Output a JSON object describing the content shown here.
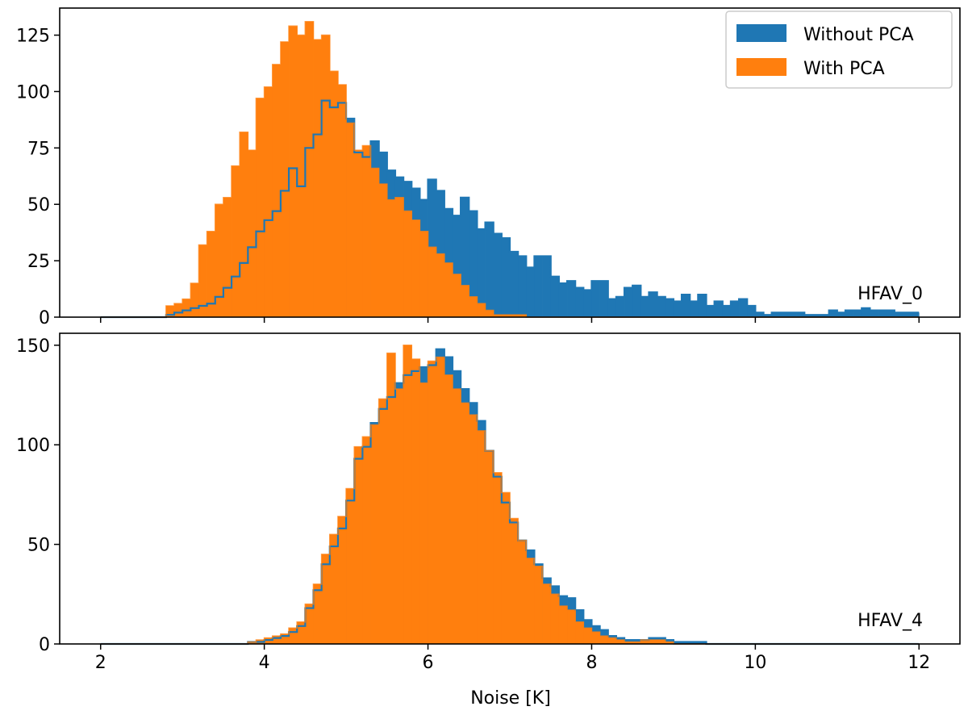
{
  "figure": {
    "xlabel": "Noise [K]",
    "x_tick_labels": [
      "2",
      "4",
      "6",
      "8",
      "10",
      "12"
    ],
    "colors": {
      "without_pca": "#1f77b4",
      "with_pca": "#ff7f0e"
    },
    "legend": {
      "without_pca": "Without PCA",
      "with_pca": "With PCA"
    }
  },
  "chart_data": [
    {
      "type": "bar",
      "panel": "top",
      "annotation": "HFAV_0",
      "xlim": [
        1.5,
        12.5
      ],
      "ylim": [
        0,
        137
      ],
      "bin_start": 2.0,
      "bin_width": 0.1,
      "yticks": [
        0,
        25,
        50,
        75,
        100,
        125
      ],
      "legend_position": "top-right",
      "series": [
        {
          "name": "Without PCA",
          "values": [
            0,
            0,
            0,
            0,
            0,
            0,
            0,
            0,
            1,
            2,
            3,
            4,
            5,
            6,
            9,
            13,
            18,
            24,
            31,
            38,
            43,
            47,
            56,
            66,
            58,
            75,
            81,
            96,
            93,
            95,
            88,
            73,
            71,
            78,
            73,
            65,
            62,
            60,
            57,
            52,
            61,
            56,
            48,
            45,
            53,
            47,
            39,
            42,
            37,
            35,
            29,
            27,
            22,
            27,
            27,
            18,
            15,
            16,
            13,
            12,
            16,
            16,
            8,
            9,
            13,
            14,
            9,
            11,
            9,
            8,
            7,
            10,
            7,
            10,
            5,
            7,
            5,
            7,
            8,
            5,
            2,
            1,
            2,
            2,
            2,
            2,
            1,
            1,
            1,
            3,
            2,
            3,
            3,
            4,
            3,
            3,
            3,
            2,
            2,
            2
          ]
        },
        {
          "name": "With PCA",
          "values": [
            0,
            0,
            0,
            0,
            0,
            0,
            0,
            0,
            5,
            6,
            8,
            15,
            32,
            38,
            50,
            53,
            67,
            82,
            74,
            97,
            102,
            112,
            122,
            129,
            125,
            131,
            123,
            125,
            109,
            103,
            86,
            74,
            76,
            66,
            59,
            52,
            53,
            47,
            43,
            38,
            31,
            28,
            24,
            19,
            14,
            9,
            6,
            3,
            1,
            1,
            1,
            1,
            0,
            0,
            0,
            0,
            0,
            0,
            0,
            0,
            0,
            0,
            0,
            0,
            0,
            0,
            0,
            0,
            0,
            0,
            0,
            0,
            0,
            0,
            0,
            0,
            0,
            0,
            0,
            0,
            0,
            0,
            0,
            0,
            0,
            0,
            0,
            0,
            0,
            0,
            0,
            0,
            0,
            0,
            0,
            0,
            0,
            0,
            0,
            0
          ]
        }
      ]
    },
    {
      "type": "bar",
      "panel": "bottom",
      "annotation": "HFAV_4",
      "xlim": [
        1.5,
        12.5
      ],
      "ylim": [
        0,
        156
      ],
      "bin_start": 2.0,
      "bin_width": 0.1,
      "yticks": [
        0,
        50,
        100,
        150
      ],
      "series": [
        {
          "name": "Without PCA",
          "values": [
            0,
            0,
            0,
            0,
            0,
            0,
            0,
            0,
            0,
            0,
            0,
            0,
            0,
            0,
            0,
            0,
            0,
            0,
            1,
            1,
            2,
            3,
            4,
            6,
            9,
            18,
            27,
            40,
            49,
            58,
            72,
            93,
            99,
            111,
            118,
            124,
            131,
            135,
            137,
            139,
            140,
            148,
            144,
            137,
            128,
            121,
            112,
            97,
            84,
            71,
            61,
            52,
            47,
            40,
            33,
            29,
            24,
            23,
            17,
            12,
            9,
            7,
            4,
            3,
            2,
            2,
            2,
            3,
            3,
            2,
            1,
            1,
            1,
            1,
            0,
            0,
            0,
            0,
            0,
            0,
            0,
            0,
            0,
            0,
            0,
            0,
            0,
            0,
            0,
            0,
            0,
            0,
            0,
            0,
            0,
            0,
            0,
            0,
            0,
            0
          ]
        },
        {
          "name": "With PCA",
          "values": [
            0,
            0,
            0,
            0,
            0,
            0,
            0,
            0,
            0,
            0,
            0,
            0,
            0,
            0,
            0,
            0,
            0,
            0,
            1,
            2,
            3,
            4,
            5,
            8,
            11,
            20,
            30,
            45,
            55,
            64,
            78,
            99,
            104,
            110,
            123,
            146,
            128,
            150,
            143,
            131,
            142,
            144,
            135,
            128,
            121,
            115,
            107,
            97,
            86,
            76,
            63,
            52,
            43,
            39,
            30,
            25,
            19,
            17,
            11,
            8,
            6,
            4,
            3,
            2,
            1,
            1,
            2,
            2,
            2,
            1,
            0,
            0,
            0,
            0,
            0,
            0,
            0,
            0,
            0,
            0,
            0,
            0,
            0,
            0,
            0,
            0,
            0,
            0,
            0,
            0,
            0,
            0,
            0,
            0,
            0,
            0,
            0,
            0,
            0,
            0
          ]
        }
      ]
    }
  ]
}
